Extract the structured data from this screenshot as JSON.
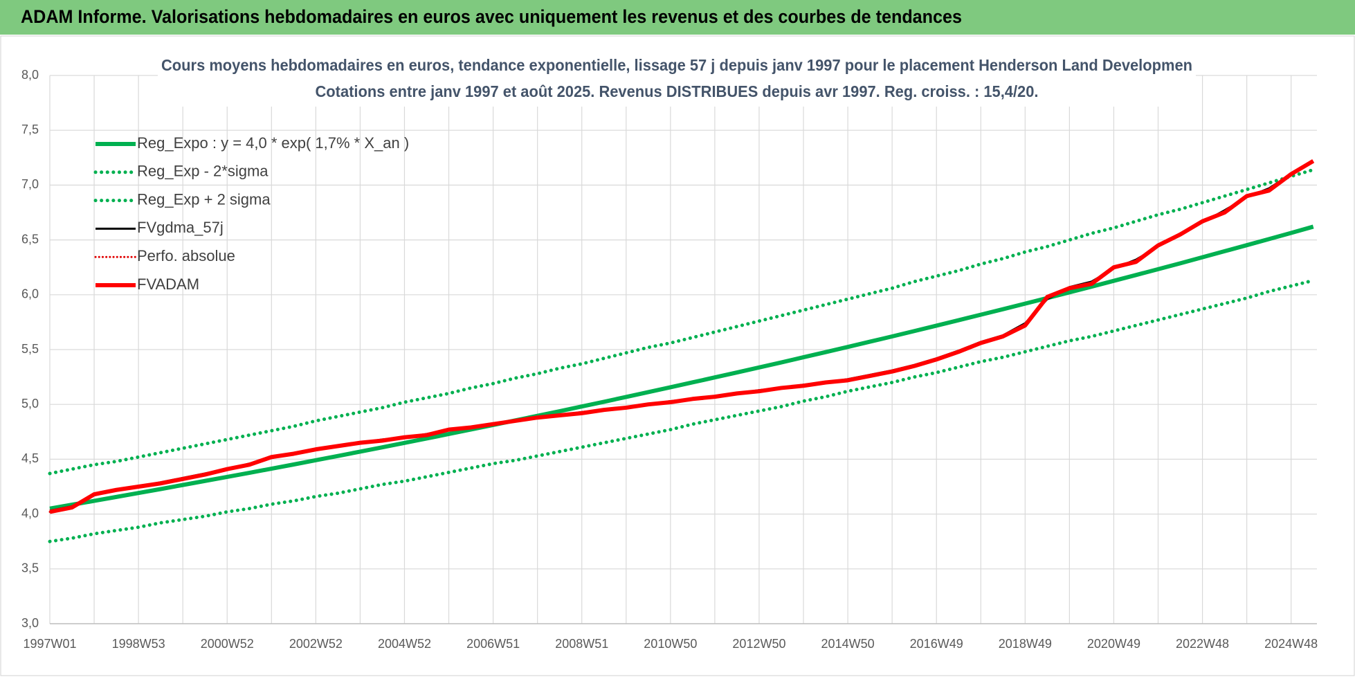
{
  "header": {
    "title": "ADAM Informe. Valorisations hebdomadaires en euros avec uniquement les revenus et des courbes de tendances"
  },
  "chart_data": {
    "type": "line",
    "title": "Cours moyens hebdomadaires en euros, tendance exponentielle, lissage 57 j depuis janv 1997 pour le placement Henderson Land Developmen",
    "subtitle": "Cotations entre janv 1997 et août 2025.  Revenus DISTRIBUES depuis avr 1997. Reg. croiss. : 15,4/20.",
    "categories": [
      "1997W01",
      null,
      null,
      null,
      "1998W53",
      null,
      null,
      null,
      "2000W52",
      null,
      null,
      null,
      "2002W52",
      null,
      null,
      null,
      "2004W52",
      null,
      null,
      null,
      "2006W51",
      null,
      null,
      null,
      "2008W51",
      null,
      null,
      null,
      "2010W50",
      null,
      null,
      null,
      "2012W50",
      null,
      null,
      null,
      "2014W50",
      null,
      null,
      null,
      "2016W49",
      null,
      null,
      null,
      "2018W49",
      null,
      null,
      null,
      "2020W49",
      null,
      null,
      null,
      "2022W48",
      null,
      null,
      null,
      "2024W48",
      null
    ],
    "ylim": [
      3.0,
      8.0
    ],
    "yticks": [
      {
        "value": 3.0,
        "label": "3,0"
      },
      {
        "value": 3.5,
        "label": "3,5"
      },
      {
        "value": 4.0,
        "label": "4,0"
      },
      {
        "value": 4.5,
        "label": "4,5"
      },
      {
        "value": 5.0,
        "label": "5,0"
      },
      {
        "value": 5.5,
        "label": "5,5"
      },
      {
        "value": 6.0,
        "label": "6,0"
      },
      {
        "value": 6.5,
        "label": "6,5"
      },
      {
        "value": 7.0,
        "label": "7,0"
      },
      {
        "value": 7.5,
        "label": "7,5"
      },
      {
        "value": 8.0,
        "label": "8,0"
      }
    ],
    "grid": true,
    "legend": "upper left",
    "series": [
      {
        "name": "Reg_Expo : y = 4,0 * exp( 1,7% *  X_an )",
        "color": "#00b050",
        "style": "solid",
        "width": 6,
        "values": [
          4.05,
          4.085,
          4.12,
          4.156,
          4.192,
          4.228,
          4.265,
          4.302,
          4.339,
          4.376,
          4.414,
          4.452,
          4.491,
          4.53,
          4.569,
          4.609,
          4.649,
          4.689,
          4.73,
          4.771,
          4.812,
          4.854,
          4.896,
          4.938,
          4.981,
          5.024,
          5.068,
          5.112,
          5.156,
          5.201,
          5.246,
          5.291,
          5.337,
          5.383,
          5.43,
          5.477,
          5.524,
          5.572,
          5.62,
          5.669,
          5.718,
          5.768,
          5.818,
          5.868,
          5.919,
          5.97,
          6.022,
          6.074,
          6.127,
          6.18,
          6.233,
          6.287,
          6.342,
          6.397,
          6.452,
          6.508,
          6.564,
          6.621
        ]
      },
      {
        "name": "Reg_Exp - 2*sigma",
        "color": "#00b050",
        "style": "dotted",
        "width": 5,
        "values": [
          3.75,
          3.78,
          3.82,
          3.85,
          3.88,
          3.92,
          3.95,
          3.98,
          4.02,
          4.05,
          4.09,
          4.12,
          4.16,
          4.19,
          4.23,
          4.27,
          4.3,
          4.34,
          4.38,
          4.42,
          4.46,
          4.49,
          4.53,
          4.57,
          4.61,
          4.65,
          4.69,
          4.73,
          4.77,
          4.82,
          4.86,
          4.9,
          4.94,
          4.98,
          5.03,
          5.07,
          5.12,
          5.16,
          5.2,
          5.25,
          5.29,
          5.34,
          5.39,
          5.43,
          5.48,
          5.53,
          5.58,
          5.62,
          5.67,
          5.72,
          5.77,
          5.82,
          5.87,
          5.92,
          5.97,
          6.03,
          6.08,
          6.13
        ]
      },
      {
        "name": "Reg_Exp + 2 sigma",
        "color": "#00b050",
        "style": "dotted",
        "width": 5,
        "values": [
          4.37,
          4.41,
          4.45,
          4.48,
          4.52,
          4.56,
          4.6,
          4.64,
          4.68,
          4.72,
          4.76,
          4.8,
          4.85,
          4.89,
          4.93,
          4.97,
          5.02,
          5.06,
          5.1,
          5.15,
          5.19,
          5.24,
          5.28,
          5.33,
          5.37,
          5.42,
          5.47,
          5.52,
          5.56,
          5.61,
          5.66,
          5.71,
          5.76,
          5.81,
          5.86,
          5.91,
          5.96,
          6.01,
          6.06,
          6.12,
          6.17,
          6.22,
          6.28,
          6.33,
          6.39,
          6.44,
          6.5,
          6.56,
          6.61,
          6.67,
          6.73,
          6.78,
          6.84,
          6.9,
          6.96,
          7.02,
          7.08,
          7.14
        ]
      },
      {
        "name": "FVgdma_57j",
        "color": "#000000",
        "style": "solid",
        "width": 3,
        "values": [
          4.03,
          4.07,
          4.17,
          4.22,
          4.25,
          4.29,
          4.33,
          4.37,
          4.41,
          4.46,
          4.51,
          4.55,
          4.59,
          4.62,
          4.65,
          4.68,
          4.7,
          4.73,
          4.77,
          4.79,
          4.82,
          4.85,
          4.88,
          4.9,
          4.93,
          4.95,
          4.97,
          5.0,
          5.03,
          5.05,
          5.07,
          5.1,
          5.13,
          5.15,
          5.18,
          5.2,
          5.23,
          5.27,
          5.31,
          5.36,
          5.42,
          5.49,
          5.57,
          5.63,
          5.74,
          5.96,
          6.07,
          6.12,
          6.24,
          6.32,
          6.44,
          6.56,
          6.66,
          6.77,
          6.89,
          6.97,
          7.1,
          7.21
        ]
      },
      {
        "name": "Perfo. absolue",
        "color": "#e00000",
        "style": "dotted",
        "width": 3,
        "values": [
          4.02,
          4.06,
          4.18,
          4.22,
          4.25,
          4.28,
          4.32,
          4.36,
          4.41,
          4.45,
          4.52,
          4.55,
          4.59,
          4.62,
          4.65,
          4.67,
          4.7,
          4.72,
          4.77,
          4.79,
          4.82,
          4.85,
          4.88,
          4.9,
          4.92,
          4.95,
          4.97,
          5.0,
          5.02,
          5.05,
          5.07,
          5.1,
          5.12,
          5.15,
          5.17,
          5.2,
          5.22,
          5.26,
          5.3,
          5.35,
          5.41,
          5.48,
          5.56,
          5.62,
          5.72,
          5.98,
          6.06,
          6.1,
          6.25,
          6.3,
          6.45,
          6.55,
          6.67,
          6.75,
          6.9,
          6.95,
          7.1,
          7.22
        ]
      },
      {
        "name": "FVADAM",
        "color": "#ff0000",
        "style": "solid",
        "width": 6,
        "values": [
          4.02,
          4.06,
          4.18,
          4.22,
          4.25,
          4.28,
          4.32,
          4.36,
          4.41,
          4.45,
          4.52,
          4.55,
          4.59,
          4.62,
          4.65,
          4.67,
          4.7,
          4.72,
          4.77,
          4.79,
          4.82,
          4.85,
          4.88,
          4.9,
          4.92,
          4.95,
          4.97,
          5.0,
          5.02,
          5.05,
          5.07,
          5.1,
          5.12,
          5.15,
          5.17,
          5.2,
          5.22,
          5.26,
          5.3,
          5.35,
          5.41,
          5.48,
          5.56,
          5.62,
          5.72,
          5.98,
          6.06,
          6.1,
          6.25,
          6.3,
          6.45,
          6.55,
          6.67,
          6.75,
          6.9,
          6.95,
          7.1,
          7.22
        ]
      }
    ]
  }
}
